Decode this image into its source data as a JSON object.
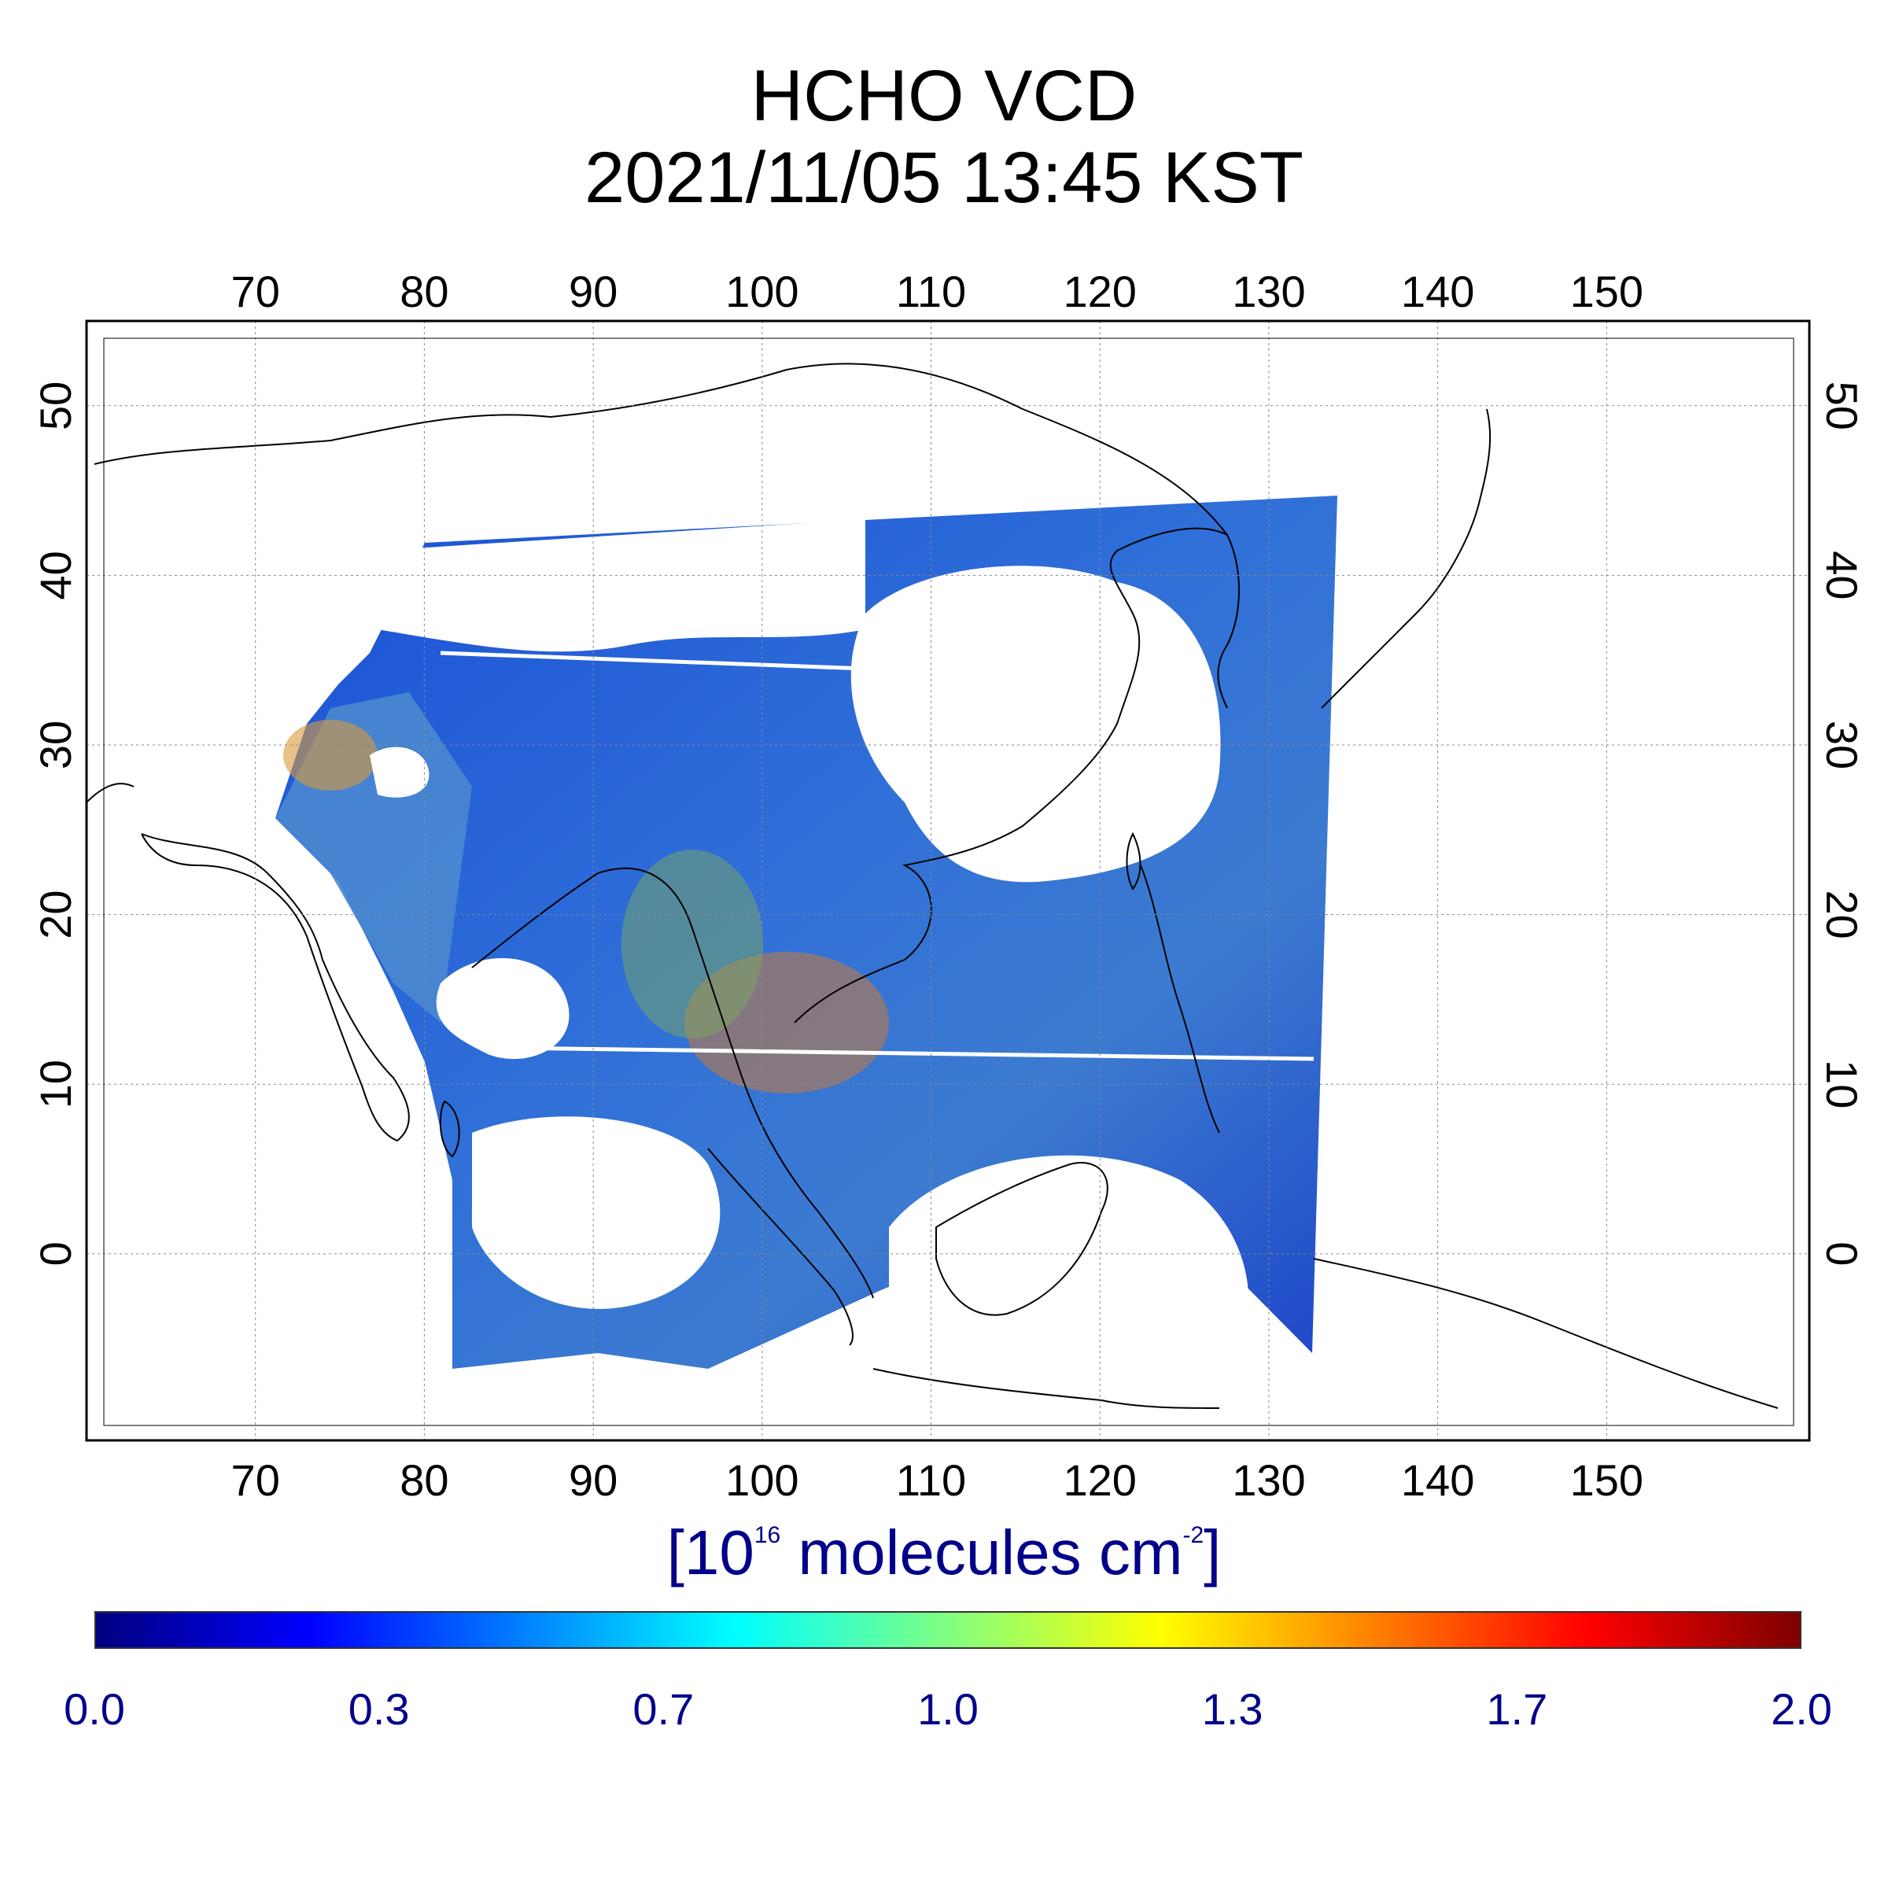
{
  "title": {
    "line1": "HCHO VCD",
    "line2": "2021/11/05 13:45 KST"
  },
  "map": {
    "lon_range": [
      60,
      162
    ],
    "lat_range": [
      -11,
      55
    ],
    "lon_ticks": [
      70,
      80,
      90,
      100,
      110,
      120,
      130,
      140,
      150
    ],
    "lat_ticks": [
      0,
      10,
      20,
      30,
      40,
      50
    ],
    "grid": true
  },
  "unit_label": {
    "open": "[10",
    "exp1": "16",
    "middle": " molecules cm",
    "exp2": "-2",
    "close": "]"
  },
  "colorbar": {
    "min": 0.0,
    "max": 2.0,
    "tick_labels": [
      "0.0",
      "0.3",
      "0.7",
      "1.0",
      "1.3",
      "1.7",
      "2.0"
    ],
    "colors": [
      "#00007f",
      "#0000ff",
      "#0080ff",
      "#00ffff",
      "#80ff80",
      "#ffff00",
      "#ff8000",
      "#ff0000",
      "#7f0000"
    ]
  }
}
